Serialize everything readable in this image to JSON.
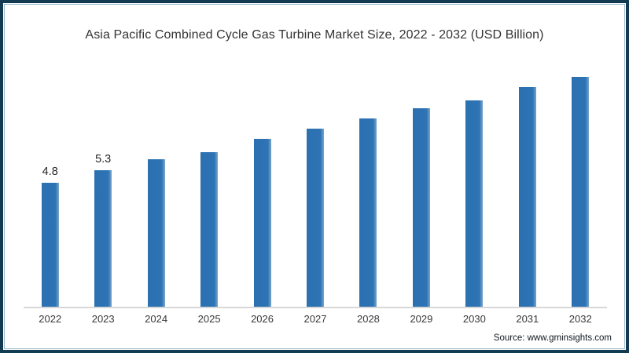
{
  "title": "Asia Pacific Combined Cycle Gas Turbine Market Size, 2022 - 2032 (USD Billion)",
  "source": "Source: www.gminsights.com",
  "colors": {
    "bar": "#2e74b4",
    "frame_border": "#123b52",
    "frame_inner_line": "#9fbccb",
    "axis_line": "#d8d8d8",
    "title_text": "#333333",
    "axis_text": "#383838"
  },
  "chart_data": {
    "type": "bar",
    "title": "Asia Pacific Combined Cycle Gas Turbine Market Size, 2022 - 2032 (USD Billion)",
    "categories": [
      "2022",
      "2023",
      "2024",
      "2025",
      "2026",
      "2027",
      "2028",
      "2029",
      "2030",
      "2031",
      "2032"
    ],
    "values": [
      4.8,
      5.3,
      5.7,
      6.0,
      6.5,
      6.9,
      7.3,
      7.7,
      8.0,
      8.5,
      8.9
    ],
    "data_labels": [
      "4.8",
      "5.3",
      "",
      "",
      "",
      "",
      "",
      "",
      "",
      "",
      ""
    ],
    "xlabel": "",
    "ylabel": "",
    "ylim": [
      0,
      10
    ],
    "grid": false,
    "legend": false,
    "annotation_source": "Source: www.gminsights.com"
  }
}
